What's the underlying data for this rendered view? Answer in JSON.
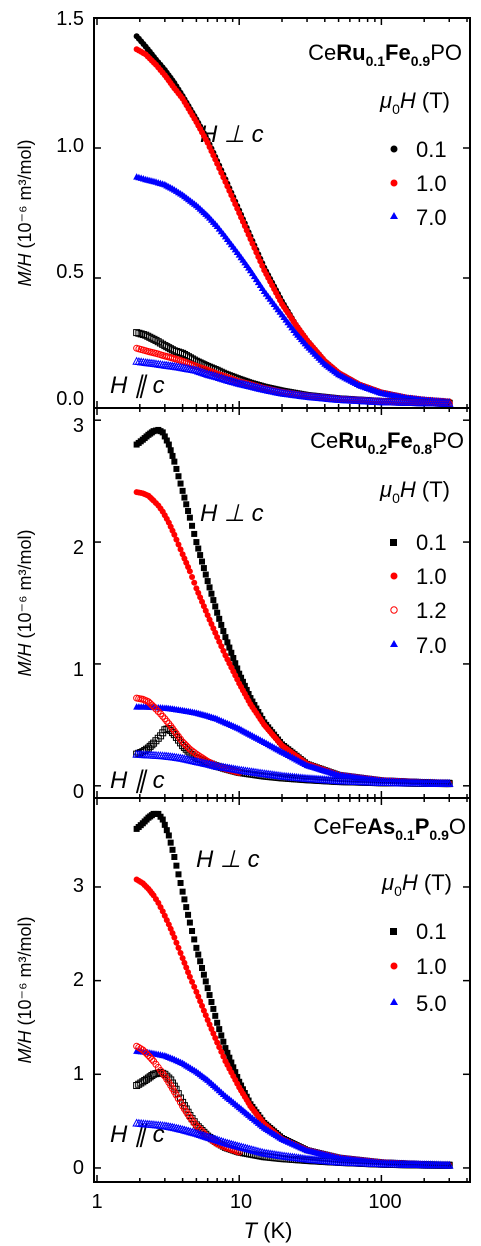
{
  "figure": {
    "x_axis": {
      "type": "log",
      "range": [
        1,
        400
      ],
      "ticks": [
        "1",
        "10",
        "100"
      ],
      "label_var": "T",
      "label_unit": "(K)"
    },
    "y_label": {
      "var": "M/H",
      "unit": "(10⁻⁶ m³/mol)"
    }
  },
  "chart_data": [
    {
      "type": "scatter",
      "title_parts": [
        "Ce",
        "Ru",
        "0.1",
        "Fe",
        "0.9",
        "PO"
      ],
      "ylim": [
        0,
        1.5
      ],
      "yticks": [
        "0.0",
        "0.5",
        "1.0",
        "1.5"
      ],
      "legend_title": "μ0H (T)",
      "legend": [
        {
          "label": "0.1",
          "color": "#000000",
          "marker": "circle"
        },
        {
          "label": "1.0",
          "color": "#ff0000",
          "marker": "circle"
        },
        {
          "label": "7.0",
          "color": "#0000ff",
          "marker": "triangle"
        }
      ],
      "annotations": [
        "H ⊥ c",
        "H ∥ c"
      ],
      "series": [
        {
          "name": "0.1",
          "orientation": "perp",
          "marker": "circle",
          "filled": true,
          "color": "#000000",
          "x": [
            1.9,
            2.2,
            2.6,
            3,
            3.5,
            4,
            5,
            6,
            7,
            8,
            10,
            12,
            15,
            20,
            25,
            30,
            40,
            50,
            70,
            100,
            150,
            200,
            300
          ],
          "y": [
            1.43,
            1.39,
            1.34,
            1.3,
            1.25,
            1.2,
            1.11,
            1.03,
            0.95,
            0.88,
            0.76,
            0.66,
            0.54,
            0.41,
            0.32,
            0.26,
            0.18,
            0.135,
            0.09,
            0.06,
            0.04,
            0.032,
            0.025
          ]
        },
        {
          "name": "1.0",
          "orientation": "perp",
          "marker": "circle",
          "filled": true,
          "color": "#ff0000",
          "x": [
            1.9,
            2.2,
            2.6,
            3,
            3.5,
            4,
            5,
            6,
            7,
            8,
            10,
            12,
            15,
            20,
            25,
            30,
            40,
            50,
            70,
            100,
            150,
            200,
            300
          ],
          "y": [
            1.38,
            1.36,
            1.32,
            1.28,
            1.23,
            1.19,
            1.1,
            1.02,
            0.94,
            0.87,
            0.75,
            0.65,
            0.53,
            0.4,
            0.32,
            0.26,
            0.18,
            0.135,
            0.09,
            0.06,
            0.04,
            0.032,
            0.025
          ]
        },
        {
          "name": "7.0",
          "orientation": "perp",
          "marker": "triangle",
          "filled": true,
          "color": "#0000ff",
          "x": [
            1.9,
            2.2,
            2.6,
            3,
            3.5,
            4,
            5,
            6,
            7,
            8,
            10,
            12,
            15,
            20,
            25,
            30,
            40,
            50,
            70,
            100,
            150,
            200,
            300
          ],
          "y": [
            0.89,
            0.88,
            0.87,
            0.86,
            0.84,
            0.82,
            0.78,
            0.74,
            0.7,
            0.66,
            0.59,
            0.53,
            0.45,
            0.36,
            0.29,
            0.24,
            0.17,
            0.13,
            0.088,
            0.058,
            0.04,
            0.032,
            0.025
          ]
        },
        {
          "name": "0.1",
          "orientation": "par",
          "marker": "square",
          "filled": false,
          "color": "#000000",
          "x": [
            1.9,
            2.2,
            2.6,
            3,
            3.5,
            4,
            5,
            6,
            7,
            8,
            10,
            12,
            15,
            20,
            30,
            50,
            100,
            200,
            300
          ],
          "y": [
            0.29,
            0.28,
            0.26,
            0.24,
            0.22,
            0.21,
            0.18,
            0.16,
            0.145,
            0.13,
            0.11,
            0.095,
            0.08,
            0.065,
            0.048,
            0.035,
            0.025,
            0.02,
            0.018
          ]
        },
        {
          "name": "1.0",
          "orientation": "par",
          "marker": "circle",
          "filled": false,
          "color": "#ff0000",
          "x": [
            1.9,
            2.2,
            2.6,
            3,
            3.5,
            4,
            5,
            6,
            7,
            8,
            10,
            12,
            15,
            20,
            30,
            50,
            100,
            200,
            300
          ],
          "y": [
            0.23,
            0.22,
            0.21,
            0.2,
            0.19,
            0.18,
            0.16,
            0.145,
            0.13,
            0.12,
            0.1,
            0.09,
            0.075,
            0.06,
            0.046,
            0.034,
            0.025,
            0.02,
            0.018
          ]
        },
        {
          "name": "7.0",
          "orientation": "par",
          "marker": "triangle",
          "filled": false,
          "color": "#0000ff",
          "x": [
            1.9,
            2.2,
            2.6,
            3,
            3.5,
            4,
            5,
            6,
            7,
            8,
            10,
            12,
            15,
            20,
            30,
            50,
            100,
            200,
            300
          ],
          "y": [
            0.18,
            0.175,
            0.17,
            0.165,
            0.16,
            0.155,
            0.145,
            0.13,
            0.12,
            0.11,
            0.095,
            0.085,
            0.072,
            0.058,
            0.045,
            0.033,
            0.024,
            0.02,
            0.018
          ]
        }
      ]
    },
    {
      "type": "scatter",
      "title_parts": [
        "Ce",
        "Ru",
        "0.2",
        "Fe",
        "0.8",
        "PO"
      ],
      "ylim": [
        -0.1,
        3.1
      ],
      "yticks": [
        "0",
        "1",
        "2",
        "3"
      ],
      "legend_title": "μ0H (T)",
      "legend": [
        {
          "label": "0.1",
          "color": "#000000",
          "marker": "square"
        },
        {
          "label": "1.0",
          "color": "#ff0000",
          "marker": "circle"
        },
        {
          "label": "1.2",
          "color": "#ff0000",
          "marker": "circle-open"
        },
        {
          "label": "7.0",
          "color": "#0000ff",
          "marker": "triangle"
        }
      ],
      "annotations": [
        "H ⊥ c",
        "H ∥ c"
      ],
      "series": [
        {
          "name": "0.1",
          "orientation": "perp",
          "marker": "square",
          "filled": true,
          "color": "#000000",
          "x": [
            1.9,
            2.1,
            2.3,
            2.5,
            2.7,
            2.9,
            3.2,
            3.5,
            4,
            4.5,
            5,
            6,
            7,
            8,
            10,
            12,
            15,
            20,
            30,
            50,
            100,
            200,
            300
          ],
          "y": [
            2.8,
            2.84,
            2.88,
            2.91,
            2.92,
            2.9,
            2.8,
            2.66,
            2.42,
            2.2,
            2.0,
            1.68,
            1.42,
            1.22,
            0.92,
            0.72,
            0.52,
            0.34,
            0.18,
            0.09,
            0.045,
            0.03,
            0.025
          ]
        },
        {
          "name": "1.0",
          "orientation": "perp",
          "marker": "circle",
          "filled": true,
          "color": "#ff0000",
          "x": [
            1.9,
            2.1,
            2.3,
            2.5,
            2.7,
            2.9,
            3.2,
            3.5,
            4,
            4.5,
            5,
            6,
            7,
            8,
            10,
            12,
            15,
            20,
            30,
            50,
            100,
            200,
            300
          ],
          "y": [
            2.41,
            2.4,
            2.38,
            2.34,
            2.3,
            2.25,
            2.16,
            2.06,
            1.9,
            1.76,
            1.62,
            1.4,
            1.22,
            1.07,
            0.84,
            0.67,
            0.5,
            0.33,
            0.18,
            0.09,
            0.045,
            0.03,
            0.025
          ]
        },
        {
          "name": "7.0",
          "orientation": "perp",
          "marker": "triangle",
          "filled": true,
          "color": "#0000ff",
          "x": [
            1.9,
            2.2,
            2.6,
            3,
            3.5,
            4,
            5,
            6,
            7,
            8,
            10,
            12,
            15,
            20,
            30,
            50,
            100,
            200,
            300
          ],
          "y": [
            0.65,
            0.65,
            0.645,
            0.64,
            0.63,
            0.62,
            0.6,
            0.575,
            0.55,
            0.52,
            0.47,
            0.42,
            0.36,
            0.28,
            0.17,
            0.09,
            0.045,
            0.03,
            0.025
          ]
        },
        {
          "name": "0.1",
          "orientation": "par",
          "marker": "square",
          "filled": false,
          "color": "#000000",
          "x": [
            1.9,
            2.1,
            2.3,
            2.5,
            2.8,
            3.0,
            3.2,
            3.5,
            4,
            4.5,
            5,
            6,
            7,
            8,
            10,
            15,
            20,
            30,
            50,
            100,
            200,
            300
          ],
          "y": [
            0.26,
            0.28,
            0.31,
            0.35,
            0.41,
            0.46,
            0.47,
            0.42,
            0.33,
            0.27,
            0.23,
            0.19,
            0.16,
            0.14,
            0.11,
            0.08,
            0.065,
            0.05,
            0.035,
            0.025,
            0.02,
            0.018
          ]
        },
        {
          "name": "1.2",
          "orientation": "par",
          "marker": "circle",
          "filled": false,
          "color": "#ff0000",
          "x": [
            1.9,
            2.1,
            2.3,
            2.5,
            2.8,
            3.0,
            3.3,
            3.6,
            4,
            4.5,
            5,
            6,
            7,
            8,
            10
          ],
          "y": [
            0.72,
            0.71,
            0.69,
            0.65,
            0.59,
            0.55,
            0.49,
            0.43,
            0.36,
            0.3,
            0.26,
            0.2,
            0.16,
            0.14,
            0.11
          ]
        },
        {
          "name": "7.0",
          "orientation": "par",
          "marker": "triangle",
          "filled": false,
          "color": "#0000ff",
          "x": [
            1.9,
            2.2,
            2.6,
            3,
            3.5,
            4,
            5,
            6,
            7,
            8,
            10,
            15,
            20,
            30,
            50,
            100,
            200,
            300
          ],
          "y": [
            0.26,
            0.255,
            0.25,
            0.245,
            0.235,
            0.225,
            0.2,
            0.18,
            0.16,
            0.15,
            0.13,
            0.1,
            0.08,
            0.06,
            0.042,
            0.028,
            0.022,
            0.02
          ]
        }
      ]
    },
    {
      "type": "scatter",
      "title_parts": [
        "CeFe",
        "As",
        "0.1",
        "P",
        "0.9",
        "O"
      ],
      "ylim": [
        -0.15,
        3.95
      ],
      "yticks": [
        "0",
        "1",
        "2",
        "3"
      ],
      "legend_title": "μ0H (T)",
      "legend": [
        {
          "label": "0.1",
          "color": "#000000",
          "marker": "square"
        },
        {
          "label": "1.0",
          "color": "#ff0000",
          "marker": "circle"
        },
        {
          "label": "5.0",
          "color": "#0000ff",
          "marker": "triangle"
        }
      ],
      "annotations": [
        "H ⊥ c",
        "H ∥ c"
      ],
      "series": [
        {
          "name": "0.1",
          "orientation": "perp",
          "marker": "square",
          "filled": true,
          "color": "#000000",
          "x": [
            1.9,
            2.1,
            2.3,
            2.5,
            2.7,
            2.9,
            3.2,
            3.5,
            4,
            4.5,
            5,
            6,
            7,
            8,
            10,
            12,
            15,
            20,
            30,
            50,
            100,
            200,
            300
          ],
          "y": [
            3.62,
            3.68,
            3.74,
            3.78,
            3.78,
            3.72,
            3.55,
            3.32,
            2.95,
            2.62,
            2.35,
            1.92,
            1.55,
            1.28,
            0.92,
            0.68,
            0.48,
            0.32,
            0.19,
            0.11,
            0.06,
            0.04,
            0.035
          ]
        },
        {
          "name": "1.0",
          "orientation": "perp",
          "marker": "circle",
          "filled": true,
          "color": "#ff0000",
          "x": [
            1.9,
            2.1,
            2.3,
            2.5,
            2.7,
            2.9,
            3.2,
            3.5,
            4,
            4.5,
            5,
            6,
            7,
            8,
            10,
            12,
            15,
            20,
            30,
            50,
            100,
            200,
            300
          ],
          "y": [
            3.08,
            3.04,
            2.98,
            2.91,
            2.83,
            2.74,
            2.6,
            2.46,
            2.24,
            2.04,
            1.88,
            1.58,
            1.34,
            1.14,
            0.86,
            0.66,
            0.47,
            0.31,
            0.19,
            0.11,
            0.06,
            0.04,
            0.035
          ]
        },
        {
          "name": "5.0",
          "orientation": "perp",
          "marker": "triangle",
          "filled": true,
          "color": "#0000ff",
          "x": [
            1.9,
            2.2,
            2.6,
            3,
            3.5,
            4,
            5,
            6,
            7,
            8,
            10,
            12,
            15,
            20,
            30,
            50,
            100,
            200,
            300
          ],
          "y": [
            1.25,
            1.24,
            1.22,
            1.2,
            1.16,
            1.12,
            1.03,
            0.94,
            0.85,
            0.77,
            0.65,
            0.55,
            0.43,
            0.31,
            0.19,
            0.11,
            0.06,
            0.04,
            0.035
          ]
        },
        {
          "name": "0.1",
          "orientation": "par",
          "marker": "square",
          "filled": false,
          "color": "#000000",
          "x": [
            1.9,
            2.1,
            2.3,
            2.5,
            2.8,
            3.0,
            3.3,
            3.6,
            4,
            4.5,
            5,
            6,
            7,
            8,
            10,
            15,
            20,
            30,
            50,
            100,
            200,
            300
          ],
          "y": [
            0.88,
            0.92,
            0.96,
            1.0,
            1.02,
            1.0,
            0.94,
            0.84,
            0.7,
            0.56,
            0.46,
            0.34,
            0.27,
            0.22,
            0.17,
            0.12,
            0.1,
            0.08,
            0.06,
            0.04,
            0.03,
            0.028
          ]
        },
        {
          "name": "1.0",
          "orientation": "par",
          "marker": "circle",
          "filled": false,
          "color": "#ff0000",
          "x": [
            1.9,
            2.1,
            2.3,
            2.5,
            2.8,
            3.0,
            3.3,
            3.6,
            4,
            4.5,
            5,
            6,
            7,
            8,
            10
          ],
          "y": [
            1.3,
            1.26,
            1.2,
            1.14,
            1.04,
            0.98,
            0.88,
            0.78,
            0.66,
            0.54,
            0.45,
            0.33,
            0.26,
            0.22,
            0.17
          ]
        },
        {
          "name": "5.0",
          "orientation": "par",
          "marker": "triangle",
          "filled": false,
          "color": "#0000ff",
          "x": [
            1.9,
            2.2,
            2.6,
            3,
            3.5,
            4,
            5,
            6,
            7,
            8,
            10,
            15,
            20,
            30,
            50,
            100,
            200,
            300
          ],
          "y": [
            0.48,
            0.47,
            0.46,
            0.45,
            0.43,
            0.41,
            0.37,
            0.33,
            0.3,
            0.27,
            0.23,
            0.16,
            0.13,
            0.095,
            0.065,
            0.045,
            0.035,
            0.03
          ]
        }
      ]
    }
  ]
}
